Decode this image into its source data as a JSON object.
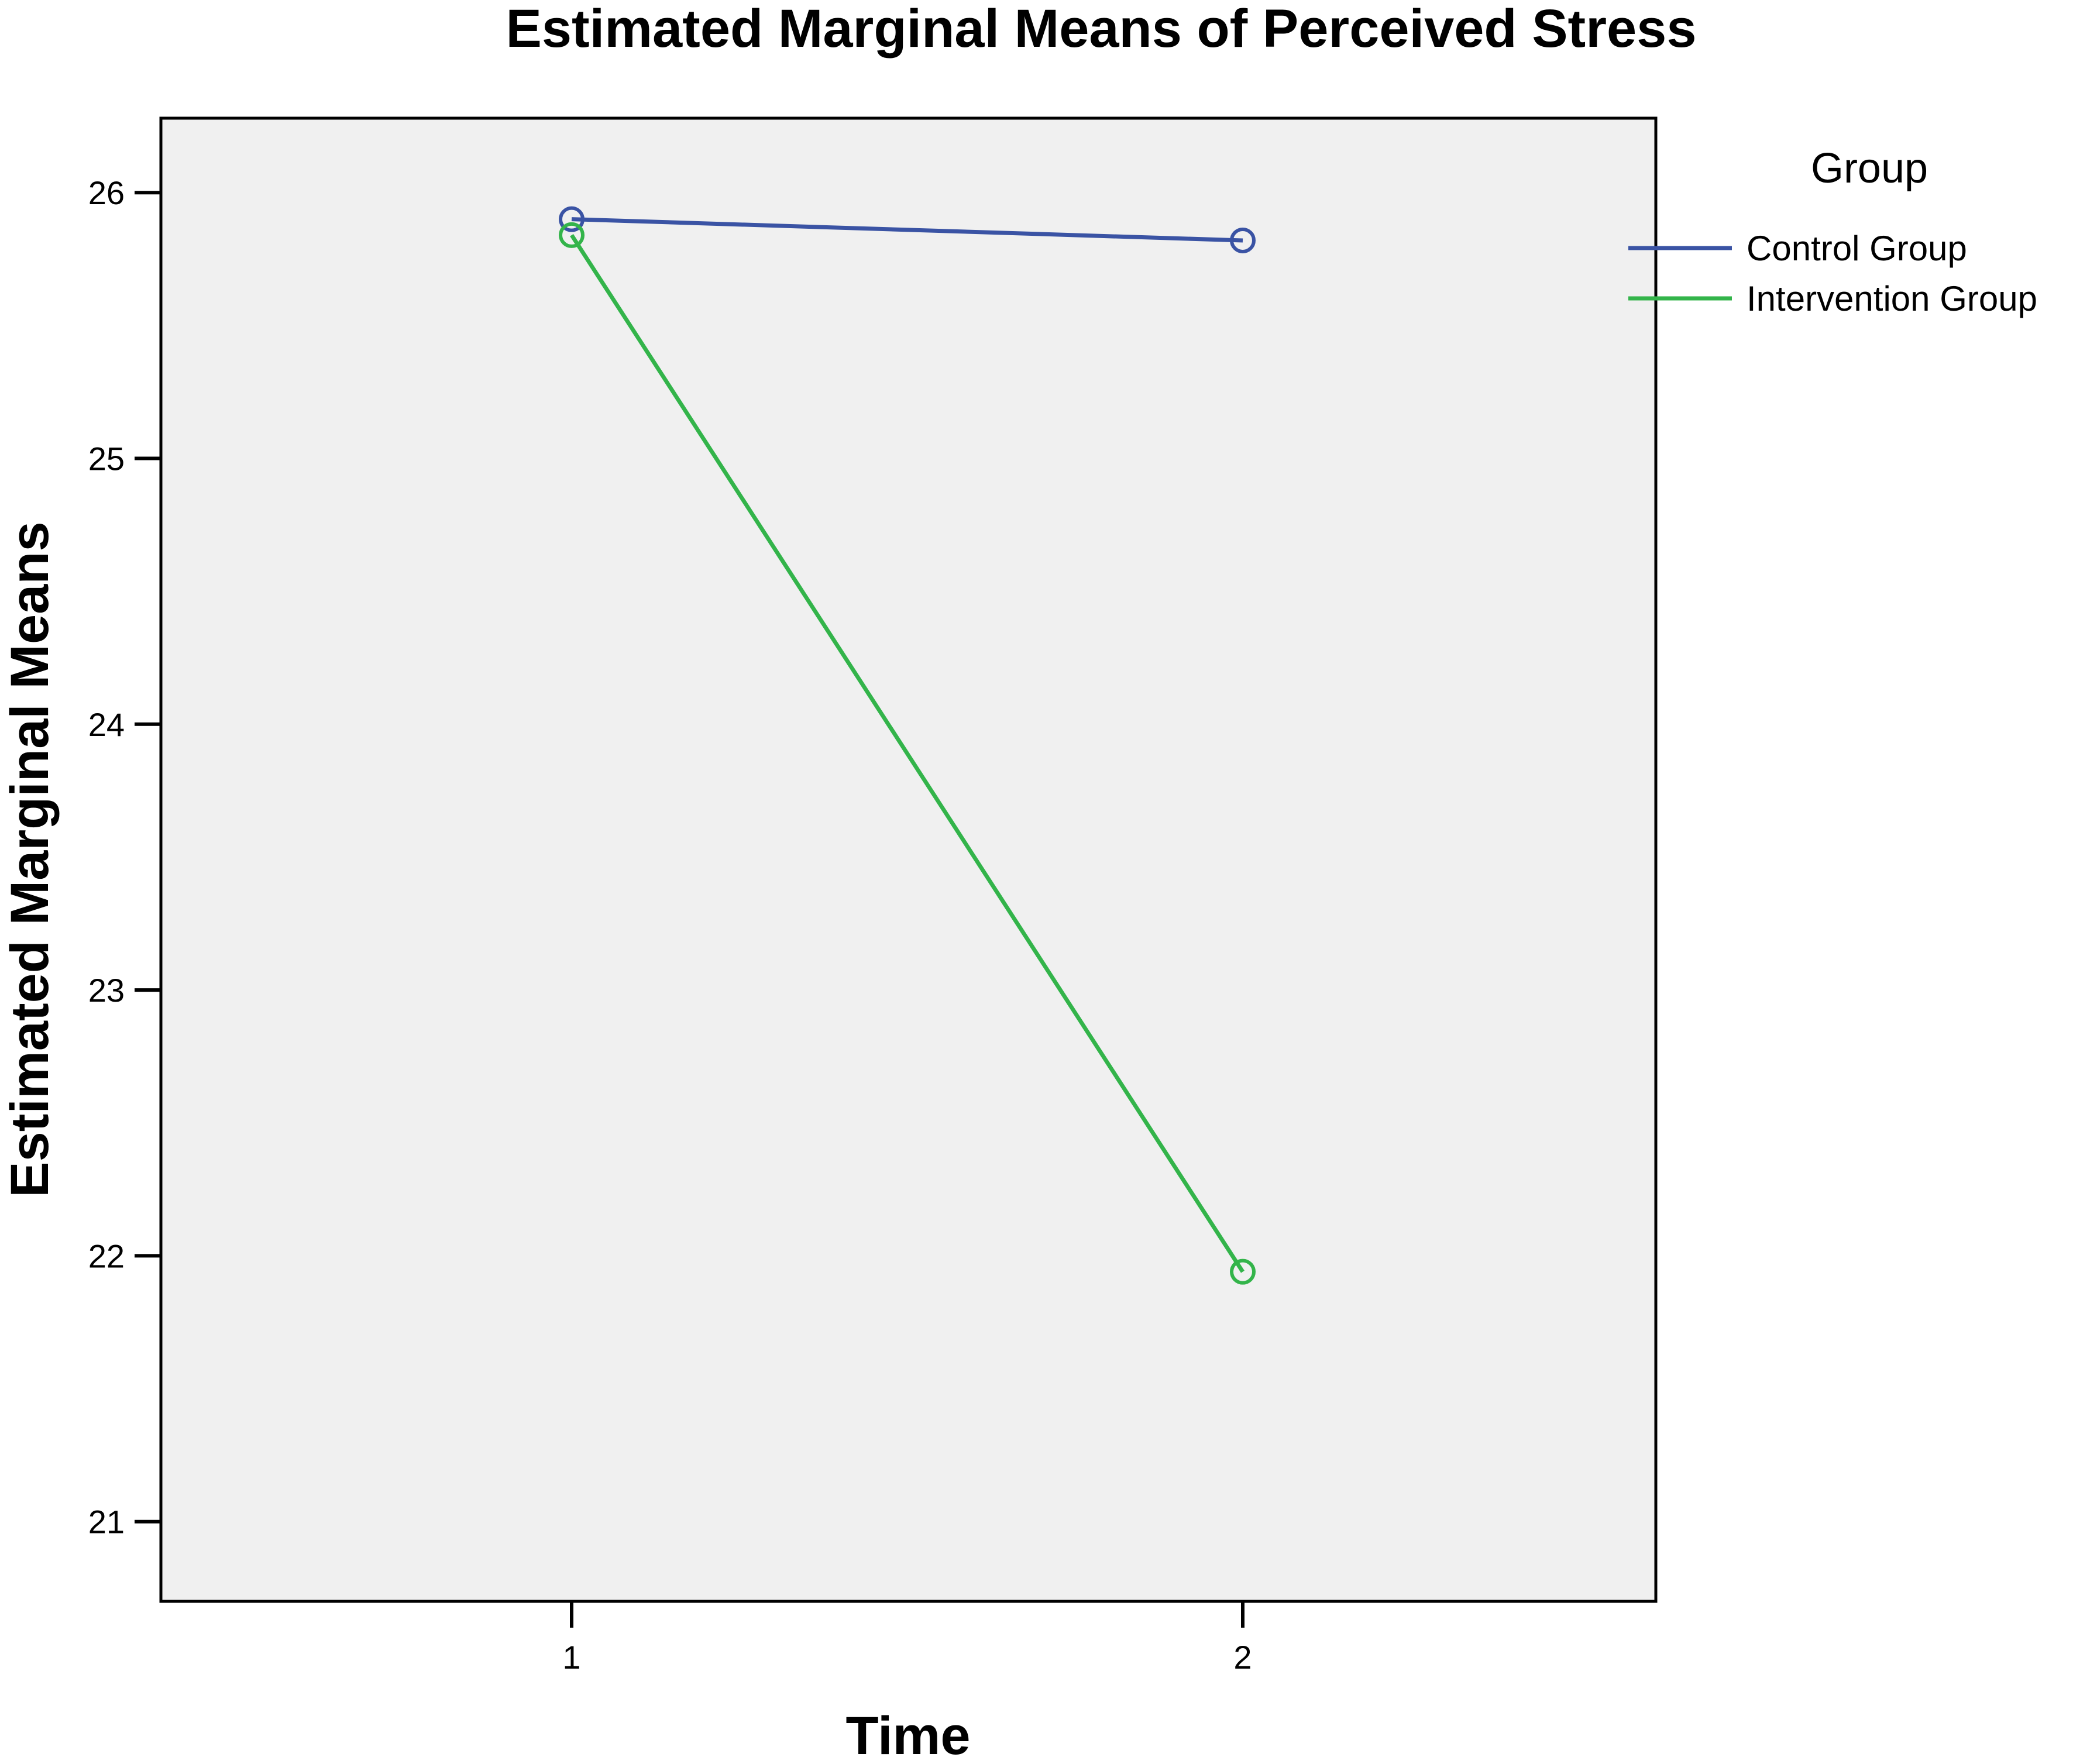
{
  "chart_data": {
    "type": "line",
    "title": "Estimated Marginal Means of Perceived Stress",
    "xlabel": "Time",
    "ylabel": "Estimated Marginal Means",
    "categories": [
      "1",
      "2"
    ],
    "ylim": [
      20.7,
      26.28
    ],
    "yticks": [
      "21",
      "22",
      "23",
      "24",
      "25",
      "26"
    ],
    "grid": false,
    "legend": {
      "title": "Group",
      "position": "right"
    },
    "series": [
      {
        "name": "Control Group",
        "values": [
          25.9,
          25.82
        ],
        "color": "#3A53A4"
      },
      {
        "name": "Intervention Group",
        "values": [
          25.84,
          21.94
        ],
        "color": "#33B44A"
      }
    ]
  }
}
